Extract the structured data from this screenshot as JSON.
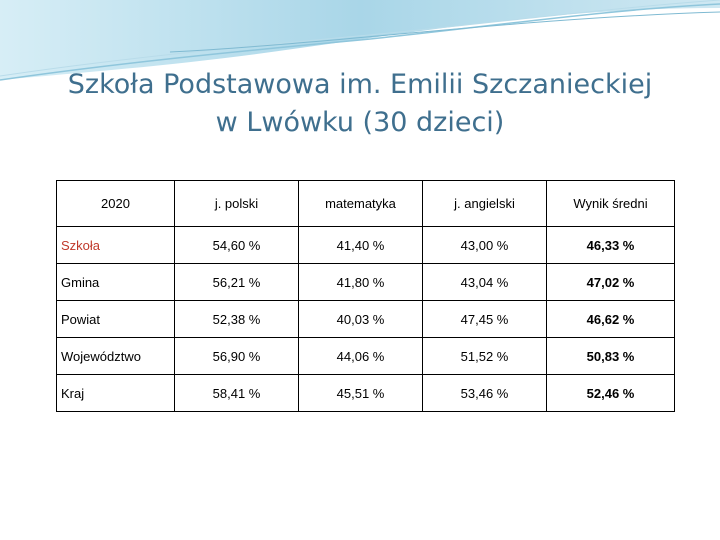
{
  "slide": {
    "title_line1": "Szkoła Podstawowa im. Emilii Szczanieckiej",
    "title_line2": "w Lwówku  (30 dzieci)"
  },
  "colors": {
    "title": "#3f6f8e",
    "banner_light": "#cfe8f2",
    "banner_mid": "#8fc6dc",
    "highlight": "#c0392b"
  },
  "table": {
    "headers": [
      "2020",
      "j. polski",
      "matematyka",
      "j. angielski",
      "Wynik średni"
    ],
    "rows": [
      {
        "label": "Szkoła",
        "cells": [
          "54,60 %",
          "41,40 %",
          "43,00 %",
          "46,33 %"
        ]
      },
      {
        "label": "Gmina",
        "cells": [
          "56,21 %",
          "41,80 %",
          "43,04 %",
          "47,02 %"
        ]
      },
      {
        "label": "Powiat",
        "cells": [
          "52,38 %",
          "40,03 %",
          "47,45 %",
          "46,62 %"
        ]
      },
      {
        "label": "Województwo",
        "cells": [
          "56,90 %",
          "44,06 %",
          "51,52 %",
          "50,83 %"
        ]
      },
      {
        "label": "Kraj",
        "cells": [
          "58,41 %",
          "45,51 %",
          "53,46 %",
          "52,46 %"
        ]
      }
    ]
  }
}
